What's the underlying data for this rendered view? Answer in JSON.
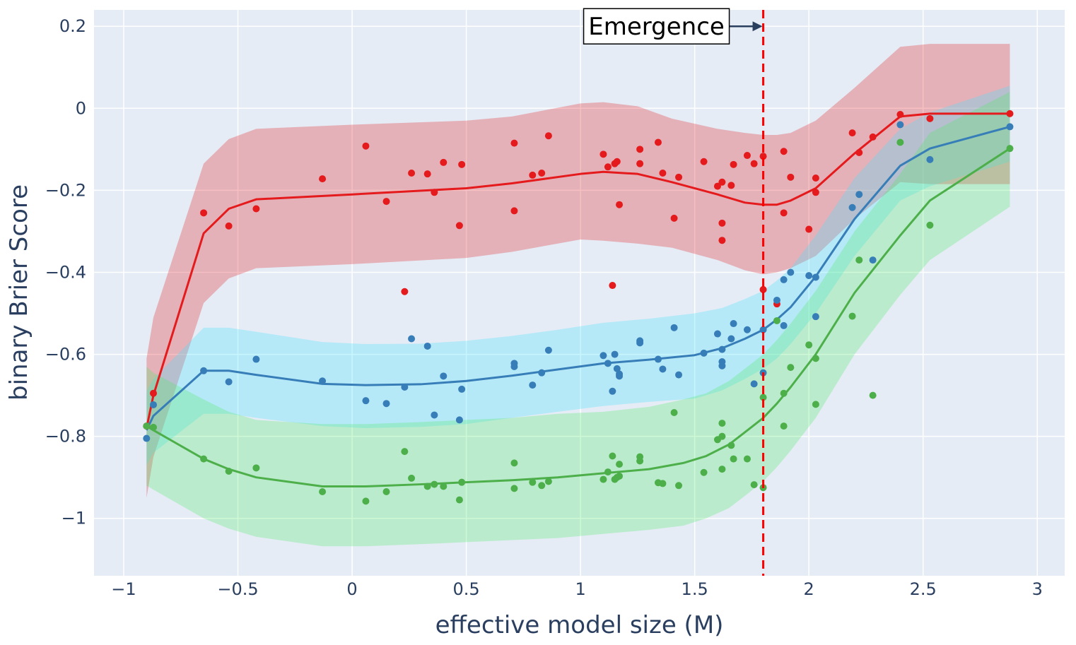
{
  "chart_data": {
    "type": "scatter",
    "title": "",
    "xlabel": "effective model size (M)",
    "ylabel": "binary Brier Score",
    "xlim": [
      -1.13,
      3.12
    ],
    "ylim": [
      -1.14,
      0.24
    ],
    "x_ticks": [
      -1,
      -0.5,
      0,
      0.5,
      1,
      1.5,
      2,
      2.5,
      3
    ],
    "x_tick_labels": [
      "−1",
      "−0.5",
      "0",
      "0.5",
      "1",
      "1.5",
      "2",
      "2.5",
      "3"
    ],
    "y_ticks": [
      0.2,
      0,
      -0.2,
      -0.4,
      -0.6,
      -0.8,
      -1
    ],
    "y_tick_labels": [
      "0.2",
      "0",
      "−0.2",
      "−0.4",
      "−0.6",
      "−0.8",
      "−1"
    ],
    "grid": true,
    "colors": {
      "plot_bg": "#e5ecf6",
      "grid": "#ffffff",
      "emergence_line": "#ff0000",
      "annotation_arrow": "#2a3f5f"
    },
    "emergence": {
      "x": 1.8,
      "label": "Emergence",
      "annotation_y": 0.2
    },
    "series": [
      {
        "name": "red",
        "color": "#e41a1c",
        "band_color": "rgba(228,26,28,0.28)",
        "line": {
          "x": [
            -0.9,
            -0.87,
            -0.65,
            -0.54,
            -0.42,
            0,
            0.5,
            0.7,
            1,
            1.1,
            1.25,
            1.4,
            1.6,
            1.72,
            1.8,
            1.86,
            1.92,
            2.03,
            2.2,
            2.4,
            2.53,
            2.88
          ],
          "y": [
            -0.78,
            -0.7,
            -0.305,
            -0.245,
            -0.222,
            -0.21,
            -0.195,
            -0.183,
            -0.16,
            -0.155,
            -0.16,
            -0.18,
            -0.21,
            -0.23,
            -0.235,
            -0.235,
            -0.225,
            -0.195,
            -0.11,
            -0.02,
            -0.013,
            -0.013
          ],
          "upper": [
            -0.61,
            -0.51,
            -0.135,
            -0.075,
            -0.05,
            -0.04,
            -0.03,
            -0.02,
            0.012,
            0.015,
            0.005,
            -0.025,
            -0.05,
            -0.06,
            -0.065,
            -0.065,
            -0.06,
            -0.03,
            0.05,
            0.15,
            0.157,
            0.157
          ],
          "lower": [
            -0.95,
            -0.85,
            -0.475,
            -0.415,
            -0.39,
            -0.38,
            -0.365,
            -0.35,
            -0.32,
            -0.323,
            -0.33,
            -0.34,
            -0.37,
            -0.395,
            -0.405,
            -0.4,
            -0.39,
            -0.36,
            -0.27,
            -0.18,
            -0.185,
            -0.185
          ]
        },
        "points": [
          [
            -0.9,
            -0.775
          ],
          [
            -0.87,
            -0.695
          ],
          [
            -0.65,
            -0.255
          ],
          [
            -0.54,
            -0.287
          ],
          [
            -0.42,
            -0.245
          ],
          [
            -0.13,
            -0.172
          ],
          [
            0.06,
            -0.092
          ],
          [
            0.15,
            -0.227
          ],
          [
            0.23,
            -0.447
          ],
          [
            0.26,
            -0.158
          ],
          [
            0.33,
            -0.16
          ],
          [
            0.36,
            -0.205
          ],
          [
            0.4,
            -0.132
          ],
          [
            0.47,
            -0.286
          ],
          [
            0.48,
            -0.137
          ],
          [
            0.71,
            -0.085
          ],
          [
            0.71,
            -0.25
          ],
          [
            0.79,
            -0.163
          ],
          [
            0.83,
            -0.158
          ],
          [
            0.86,
            -0.067
          ],
          [
            1.1,
            -0.112
          ],
          [
            1.12,
            -0.143
          ],
          [
            1.14,
            -0.432
          ],
          [
            1.15,
            -0.135
          ],
          [
            1.16,
            -0.13
          ],
          [
            1.17,
            -0.235
          ],
          [
            1.26,
            -0.1
          ],
          [
            1.26,
            -0.135
          ],
          [
            1.34,
            -0.083
          ],
          [
            1.36,
            -0.158
          ],
          [
            1.41,
            -0.268
          ],
          [
            1.43,
            -0.168
          ],
          [
            1.54,
            -0.13
          ],
          [
            1.6,
            -0.19
          ],
          [
            1.62,
            -0.18
          ],
          [
            1.62,
            -0.28
          ],
          [
            1.62,
            -0.322
          ],
          [
            1.66,
            -0.188
          ],
          [
            1.67,
            -0.137
          ],
          [
            1.73,
            -0.115
          ],
          [
            1.76,
            -0.135
          ],
          [
            1.8,
            -0.117
          ],
          [
            1.8,
            -0.442
          ],
          [
            1.86,
            -0.477
          ],
          [
            1.89,
            -0.255
          ],
          [
            1.89,
            -0.105
          ],
          [
            1.92,
            -0.168
          ],
          [
            2.0,
            -0.295
          ],
          [
            2.03,
            -0.17
          ],
          [
            2.03,
            -0.205
          ],
          [
            2.19,
            -0.06
          ],
          [
            2.22,
            -0.108
          ],
          [
            2.28,
            -0.07
          ],
          [
            2.4,
            -0.015
          ],
          [
            2.53,
            -0.025
          ],
          [
            2.88,
            -0.013
          ]
        ]
      },
      {
        "name": "blue",
        "color": "#377eb8",
        "band_color": "rgba(72,226,252,0.3)",
        "line": {
          "x": [
            -0.9,
            -0.87,
            -0.65,
            -0.54,
            -0.42,
            -0.13,
            0.06,
            0.3,
            0.5,
            0.7,
            0.9,
            1.1,
            1.3,
            1.5,
            1.62,
            1.72,
            1.8,
            1.86,
            1.92,
            2.03,
            2.2,
            2.4,
            2.53,
            2.88
          ],
          "y": [
            -0.785,
            -0.75,
            -0.64,
            -0.64,
            -0.65,
            -0.672,
            -0.675,
            -0.673,
            -0.665,
            -0.652,
            -0.637,
            -0.622,
            -0.613,
            -0.602,
            -0.585,
            -0.562,
            -0.54,
            -0.515,
            -0.485,
            -0.41,
            -0.27,
            -0.14,
            -0.098,
            -0.045
          ],
          "upper": [
            -0.69,
            -0.66,
            -0.535,
            -0.535,
            -0.545,
            -0.57,
            -0.575,
            -0.574,
            -0.567,
            -0.555,
            -0.54,
            -0.523,
            -0.513,
            -0.5,
            -0.487,
            -0.465,
            -0.445,
            -0.42,
            -0.39,
            -0.31,
            -0.17,
            -0.05,
            -0.01,
            0.055
          ],
          "lower": [
            -0.87,
            -0.84,
            -0.745,
            -0.745,
            -0.755,
            -0.775,
            -0.78,
            -0.777,
            -0.77,
            -0.755,
            -0.74,
            -0.726,
            -0.716,
            -0.708,
            -0.688,
            -0.66,
            -0.635,
            -0.61,
            -0.575,
            -0.5,
            -0.36,
            -0.225,
            -0.19,
            -0.13
          ]
        },
        "points": [
          [
            -0.9,
            -0.805
          ],
          [
            -0.87,
            -0.723
          ],
          [
            -0.65,
            -0.64
          ],
          [
            -0.54,
            -0.667
          ],
          [
            -0.42,
            -0.612
          ],
          [
            -0.13,
            -0.665
          ],
          [
            0.06,
            -0.713
          ],
          [
            0.15,
            -0.72
          ],
          [
            0.23,
            -0.68
          ],
          [
            0.26,
            -0.562
          ],
          [
            0.33,
            -0.58
          ],
          [
            0.36,
            -0.748
          ],
          [
            0.4,
            -0.653
          ],
          [
            0.47,
            -0.76
          ],
          [
            0.48,
            -0.685
          ],
          [
            0.71,
            -0.622
          ],
          [
            0.71,
            -0.63
          ],
          [
            0.79,
            -0.675
          ],
          [
            0.83,
            -0.645
          ],
          [
            0.86,
            -0.59
          ],
          [
            1.1,
            -0.603
          ],
          [
            1.12,
            -0.622
          ],
          [
            1.14,
            -0.69
          ],
          [
            1.15,
            -0.6
          ],
          [
            1.16,
            -0.635
          ],
          [
            1.17,
            -0.648
          ],
          [
            1.17,
            -0.653
          ],
          [
            1.26,
            -0.567
          ],
          [
            1.26,
            -0.572
          ],
          [
            1.34,
            -0.612
          ],
          [
            1.36,
            -0.636
          ],
          [
            1.41,
            -0.535
          ],
          [
            1.43,
            -0.65
          ],
          [
            1.54,
            -0.597
          ],
          [
            1.6,
            -0.55
          ],
          [
            1.62,
            -0.588
          ],
          [
            1.62,
            -0.618
          ],
          [
            1.62,
            -0.628
          ],
          [
            1.66,
            -0.562
          ],
          [
            1.67,
            -0.525
          ],
          [
            1.73,
            -0.54
          ],
          [
            1.76,
            -0.672
          ],
          [
            1.8,
            -0.54
          ],
          [
            1.8,
            -0.645
          ],
          [
            1.86,
            -0.468
          ],
          [
            1.89,
            -0.418
          ],
          [
            1.89,
            -0.53
          ],
          [
            1.92,
            -0.4
          ],
          [
            2.0,
            -0.408
          ],
          [
            2.03,
            -0.412
          ],
          [
            2.03,
            -0.508
          ],
          [
            2.19,
            -0.242
          ],
          [
            2.22,
            -0.21
          ],
          [
            2.28,
            -0.37
          ],
          [
            2.4,
            -0.04
          ],
          [
            2.53,
            -0.125
          ],
          [
            2.88,
            -0.045
          ]
        ]
      },
      {
        "name": "green",
        "color": "#4daf4a",
        "band_color": "rgba(80,232,100,0.28)",
        "line": {
          "x": [
            -0.9,
            -0.87,
            -0.65,
            -0.54,
            -0.42,
            -0.13,
            0.06,
            0.3,
            0.5,
            0.7,
            0.9,
            1.1,
            1.3,
            1.45,
            1.55,
            1.65,
            1.72,
            1.8,
            1.86,
            1.92,
            2.03,
            2.2,
            2.4,
            2.53,
            2.88
          ],
          "y": [
            -0.775,
            -0.785,
            -0.855,
            -0.88,
            -0.9,
            -0.922,
            -0.922,
            -0.917,
            -0.912,
            -0.907,
            -0.9,
            -0.89,
            -0.88,
            -0.865,
            -0.848,
            -0.82,
            -0.79,
            -0.755,
            -0.72,
            -0.68,
            -0.6,
            -0.45,
            -0.31,
            -0.225,
            -0.098
          ],
          "upper": [
            -0.63,
            -0.645,
            -0.71,
            -0.74,
            -0.76,
            -0.77,
            -0.77,
            -0.765,
            -0.76,
            -0.755,
            -0.745,
            -0.74,
            -0.728,
            -0.71,
            -0.695,
            -0.665,
            -0.635,
            -0.6,
            -0.565,
            -0.525,
            -0.445,
            -0.3,
            -0.16,
            -0.06,
            0.04
          ],
          "lower": [
            -0.92,
            -0.93,
            -1.0,
            -1.025,
            -1.045,
            -1.068,
            -1.068,
            -1.063,
            -1.058,
            -1.053,
            -1.048,
            -1.038,
            -1.028,
            -1.018,
            -1.0,
            -0.975,
            -0.945,
            -0.91,
            -0.875,
            -0.835,
            -0.755,
            -0.6,
            -0.455,
            -0.37,
            -0.24
          ]
        },
        "points": [
          [
            -0.9,
            -0.775
          ],
          [
            -0.87,
            -0.778
          ],
          [
            -0.65,
            -0.855
          ],
          [
            -0.54,
            -0.885
          ],
          [
            -0.42,
            -0.877
          ],
          [
            -0.13,
            -0.935
          ],
          [
            0.06,
            -0.958
          ],
          [
            0.15,
            -0.935
          ],
          [
            0.23,
            -0.837
          ],
          [
            0.26,
            -0.902
          ],
          [
            0.33,
            -0.922
          ],
          [
            0.36,
            -0.917
          ],
          [
            0.4,
            -0.922
          ],
          [
            0.47,
            -0.955
          ],
          [
            0.48,
            -0.912
          ],
          [
            0.71,
            -0.865
          ],
          [
            0.71,
            -0.927
          ],
          [
            0.79,
            -0.912
          ],
          [
            0.83,
            -0.92
          ],
          [
            0.86,
            -0.91
          ],
          [
            1.1,
            -0.905
          ],
          [
            1.12,
            -0.887
          ],
          [
            1.14,
            -0.848
          ],
          [
            1.15,
            -0.905
          ],
          [
            1.16,
            -0.9
          ],
          [
            1.17,
            -0.897
          ],
          [
            1.17,
            -0.868
          ],
          [
            1.26,
            -0.85
          ],
          [
            1.26,
            -0.86
          ],
          [
            1.34,
            -0.913
          ],
          [
            1.36,
            -0.915
          ],
          [
            1.41,
            -0.742
          ],
          [
            1.43,
            -0.92
          ],
          [
            1.54,
            -0.888
          ],
          [
            1.6,
            -0.808
          ],
          [
            1.62,
            -0.768
          ],
          [
            1.62,
            -0.8
          ],
          [
            1.62,
            -0.88
          ],
          [
            1.66,
            -0.822
          ],
          [
            1.67,
            -0.855
          ],
          [
            1.73,
            -0.855
          ],
          [
            1.76,
            -0.918
          ],
          [
            1.8,
            -0.705
          ],
          [
            1.8,
            -0.925
          ],
          [
            1.86,
            -0.518
          ],
          [
            1.89,
            -0.695
          ],
          [
            1.89,
            -0.775
          ],
          [
            1.92,
            -0.632
          ],
          [
            2.0,
            -0.577
          ],
          [
            2.03,
            -0.61
          ],
          [
            2.03,
            -0.722
          ],
          [
            2.19,
            -0.507
          ],
          [
            2.22,
            -0.37
          ],
          [
            2.28,
            -0.7
          ],
          [
            2.4,
            -0.083
          ],
          [
            2.53,
            -0.285
          ],
          [
            2.88,
            -0.098
          ]
        ]
      }
    ]
  }
}
